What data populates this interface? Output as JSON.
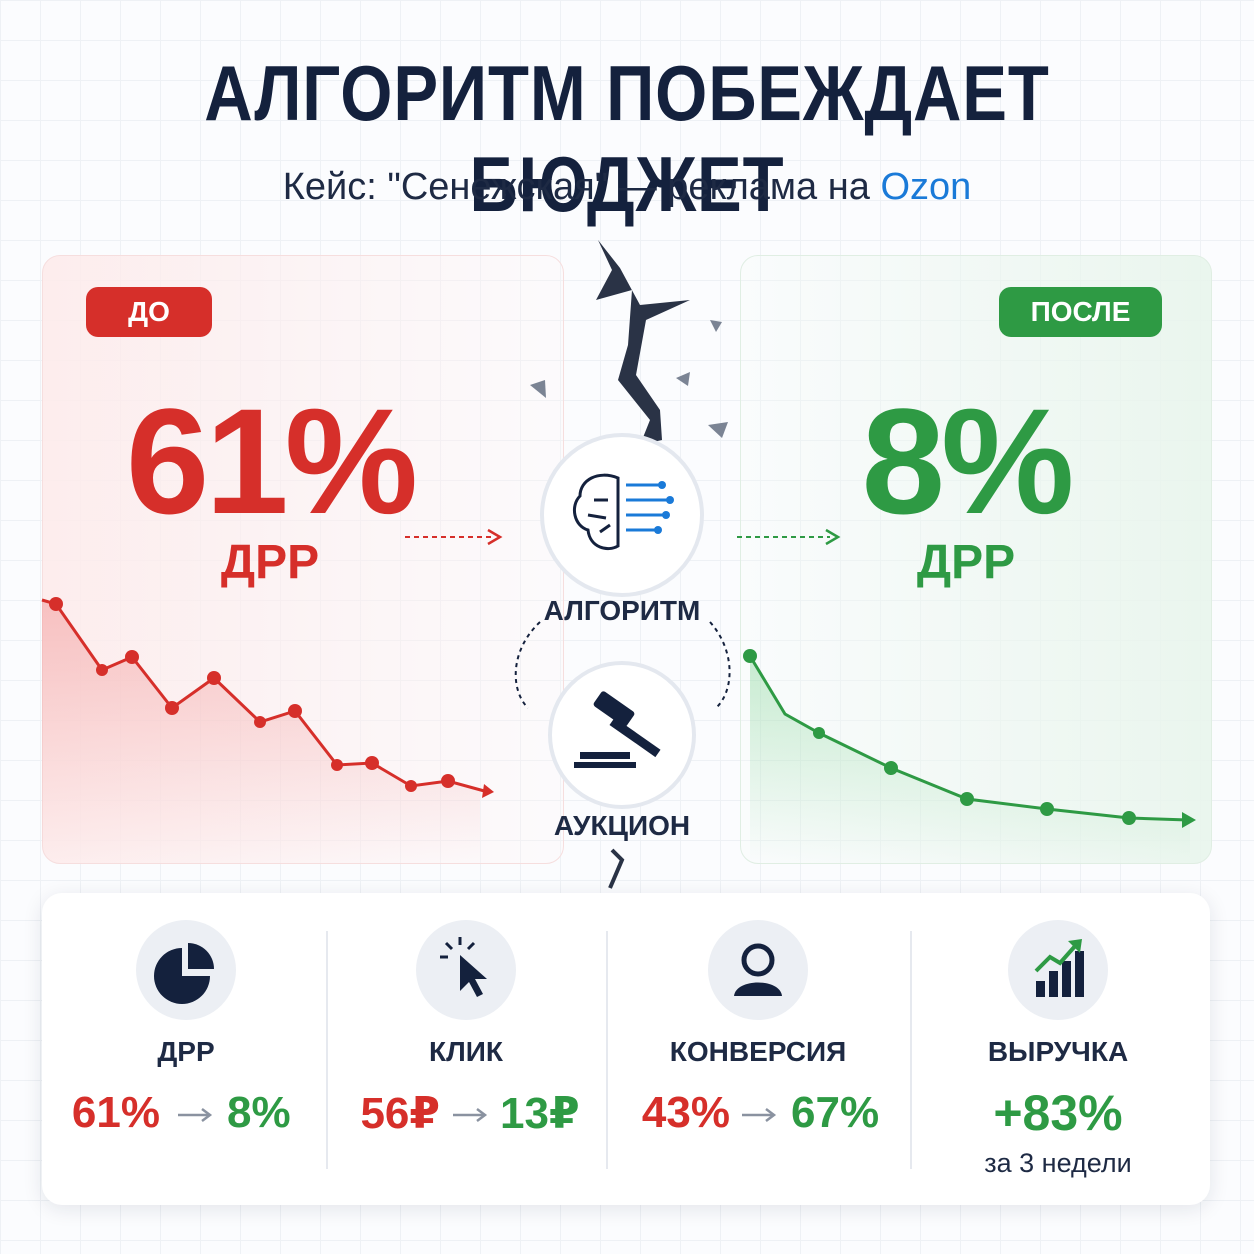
{
  "header": {
    "title": "АЛГОРИТМ ПОБЕЖДАЕТ БЮДЖЕТ",
    "subtitle": "Кейс: \"Сенежская\" — реклама на",
    "brand": "Ozon"
  },
  "before": {
    "badge": "ДО",
    "value": "61%",
    "label": "ДРР"
  },
  "after": {
    "badge": "ПОСЛЕ",
    "value": "8%",
    "label": "ДРР"
  },
  "center": {
    "algorithm": "АЛГОРИТМ",
    "auction": "АУКЦИОН"
  },
  "metrics": [
    {
      "label": "ДРР",
      "before": "61%",
      "after": "8%"
    },
    {
      "label": "КЛИК",
      "before": "56₽",
      "after": "13₽"
    },
    {
      "label": "КОНВЕРСИЯ",
      "before": "43%",
      "after": "67%"
    },
    {
      "label": "ВЫРУЧКА",
      "value": "+83%",
      "note": "за 3 недели"
    }
  ]
}
